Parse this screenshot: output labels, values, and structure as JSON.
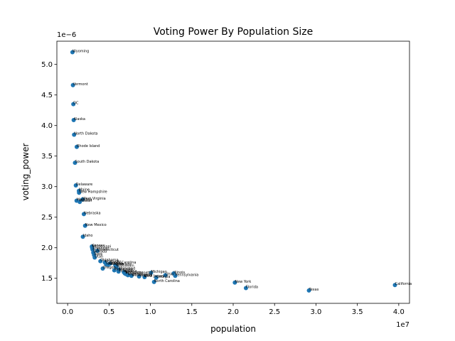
{
  "chart_data": {
    "type": "scatter",
    "title": "Voting Power By Population Size",
    "xlabel": "population",
    "ylabel": "voting_power",
    "x_offset_label": "1e7",
    "y_offset_label": "1e−6",
    "xlim": [
      -1300000,
      41300000
    ],
    "ylim": [
      1.09e-06,
      5.38e-06
    ],
    "xticks": [
      0,
      5000000,
      10000000,
      15000000,
      20000000,
      25000000,
      30000000,
      35000000,
      40000000
    ],
    "xtick_labels": [
      "0.0",
      "0.5",
      "1.0",
      "1.5",
      "2.0",
      "2.5",
      "3.0",
      "3.5",
      "4.0"
    ],
    "yticks": [
      1.5e-06,
      2e-06,
      2.5e-06,
      3e-06,
      3.5e-06,
      4e-06,
      4.5e-06,
      5e-06
    ],
    "ytick_labels": [
      "1.5",
      "2.0",
      "2.5",
      "3.0",
      "3.5",
      "4.0",
      "4.5",
      "5.0"
    ],
    "grid": false,
    "marker_color": "#1f77b4",
    "points": [
      {
        "label": "Wyoming",
        "x": 580000,
        "y": 5.2e-06
      },
      {
        "label": "Vermont",
        "x": 640000,
        "y": 4.66e-06
      },
      {
        "label": "DC",
        "x": 690000,
        "y": 4.35e-06
      },
      {
        "label": "Alaska",
        "x": 730000,
        "y": 4.09e-06
      },
      {
        "label": "North Dakota",
        "x": 780000,
        "y": 3.85e-06
      },
      {
        "label": "Rhode Island",
        "x": 1100000,
        "y": 3.65e-06
      },
      {
        "label": "South Dakota",
        "x": 890000,
        "y": 3.39e-06
      },
      {
        "label": "Delaware",
        "x": 990000,
        "y": 3.02e-06
      },
      {
        "label": "Maine",
        "x": 1360000,
        "y": 2.93e-06
      },
      {
        "label": "New Hampshire",
        "x": 1380000,
        "y": 2.9e-06
      },
      {
        "label": "West Virginia",
        "x": 1790000,
        "y": 2.79e-06
      },
      {
        "label": "Montana",
        "x": 1080000,
        "y": 2.77e-06
      },
      {
        "label": "Hawaii",
        "x": 1460000,
        "y": 2.75e-06
      },
      {
        "label": "Nebraska",
        "x": 1960000,
        "y": 2.55e-06
      },
      {
        "label": "New Mexico",
        "x": 2110000,
        "y": 2.36e-06
      },
      {
        "label": "Idaho",
        "x": 1840000,
        "y": 2.18e-06
      },
      {
        "label": "Kansas",
        "x": 2930000,
        "y": 2.02e-06
      },
      {
        "label": "Mississippi",
        "x": 2960000,
        "y": 2e-06
      },
      {
        "label": "Arkansas",
        "x": 3010000,
        "y": 1.97e-06
      },
      {
        "label": "Connecticut",
        "x": 3600000,
        "y": 1.95e-06
      },
      {
        "label": "Nevada",
        "x": 3100000,
        "y": 1.92e-06
      },
      {
        "label": "Iowa",
        "x": 3190000,
        "y": 1.88e-06
      },
      {
        "label": "Utah",
        "x": 3270000,
        "y": 1.84e-06
      },
      {
        "label": "Oklahoma",
        "x": 3960000,
        "y": 1.78e-06
      },
      {
        "label": "Kentucky",
        "x": 4500000,
        "y": 1.76e-06
      },
      {
        "label": "South Carolina",
        "x": 5120000,
        "y": 1.74e-06
      },
      {
        "label": "Louisiana",
        "x": 4650000,
        "y": 1.73e-06
      },
      {
        "label": "Alabama",
        "x": 4900000,
        "y": 1.72e-06
      },
      {
        "label": "Colorado",
        "x": 5770000,
        "y": 1.71e-06
      },
      {
        "label": "Wisconsin",
        "x": 5890000,
        "y": 1.69e-06
      },
      {
        "label": "Oregon",
        "x": 4240000,
        "y": 1.66e-06
      },
      {
        "label": "Maryland",
        "x": 6170000,
        "y": 1.64e-06
      },
      {
        "label": "Minnesota",
        "x": 5640000,
        "y": 1.63e-06
      },
      {
        "label": "Missouri",
        "x": 6150000,
        "y": 1.61e-06
      },
      {
        "label": "Indiana",
        "x": 6790000,
        "y": 1.6e-06
      },
      {
        "label": "Tennessee",
        "x": 6910000,
        "y": 1.58e-06
      },
      {
        "label": "Massachusetts",
        "x": 7030000,
        "y": 1.57e-06
      },
      {
        "label": "Arizona",
        "x": 7280000,
        "y": 1.55e-06
      },
      {
        "label": "Washington",
        "x": 7710000,
        "y": 1.54e-06
      },
      {
        "label": "Virginia",
        "x": 8630000,
        "y": 1.53e-06
      },
      {
        "label": "New Jersey",
        "x": 9290000,
        "y": 1.52e-06
      },
      {
        "label": "Michigan",
        "x": 10080000,
        "y": 1.59e-06
      },
      {
        "label": "Ohio",
        "x": 11800000,
        "y": 1.55e-06
      },
      {
        "label": "Georgia",
        "x": 10710000,
        "y": 1.51e-06
      },
      {
        "label": "Illinois",
        "x": 12810000,
        "y": 1.58e-06
      },
      {
        "label": "Pennsylvania",
        "x": 13000000,
        "y": 1.54e-06
      },
      {
        "label": "North Carolina",
        "x": 10440000,
        "y": 1.44e-06
      },
      {
        "label": "New York",
        "x": 20200000,
        "y": 1.43e-06
      },
      {
        "label": "Florida",
        "x": 21540000,
        "y": 1.34e-06
      },
      {
        "label": "Texas",
        "x": 29150000,
        "y": 1.3e-06
      },
      {
        "label": "California",
        "x": 39540000,
        "y": 1.39e-06
      }
    ]
  }
}
